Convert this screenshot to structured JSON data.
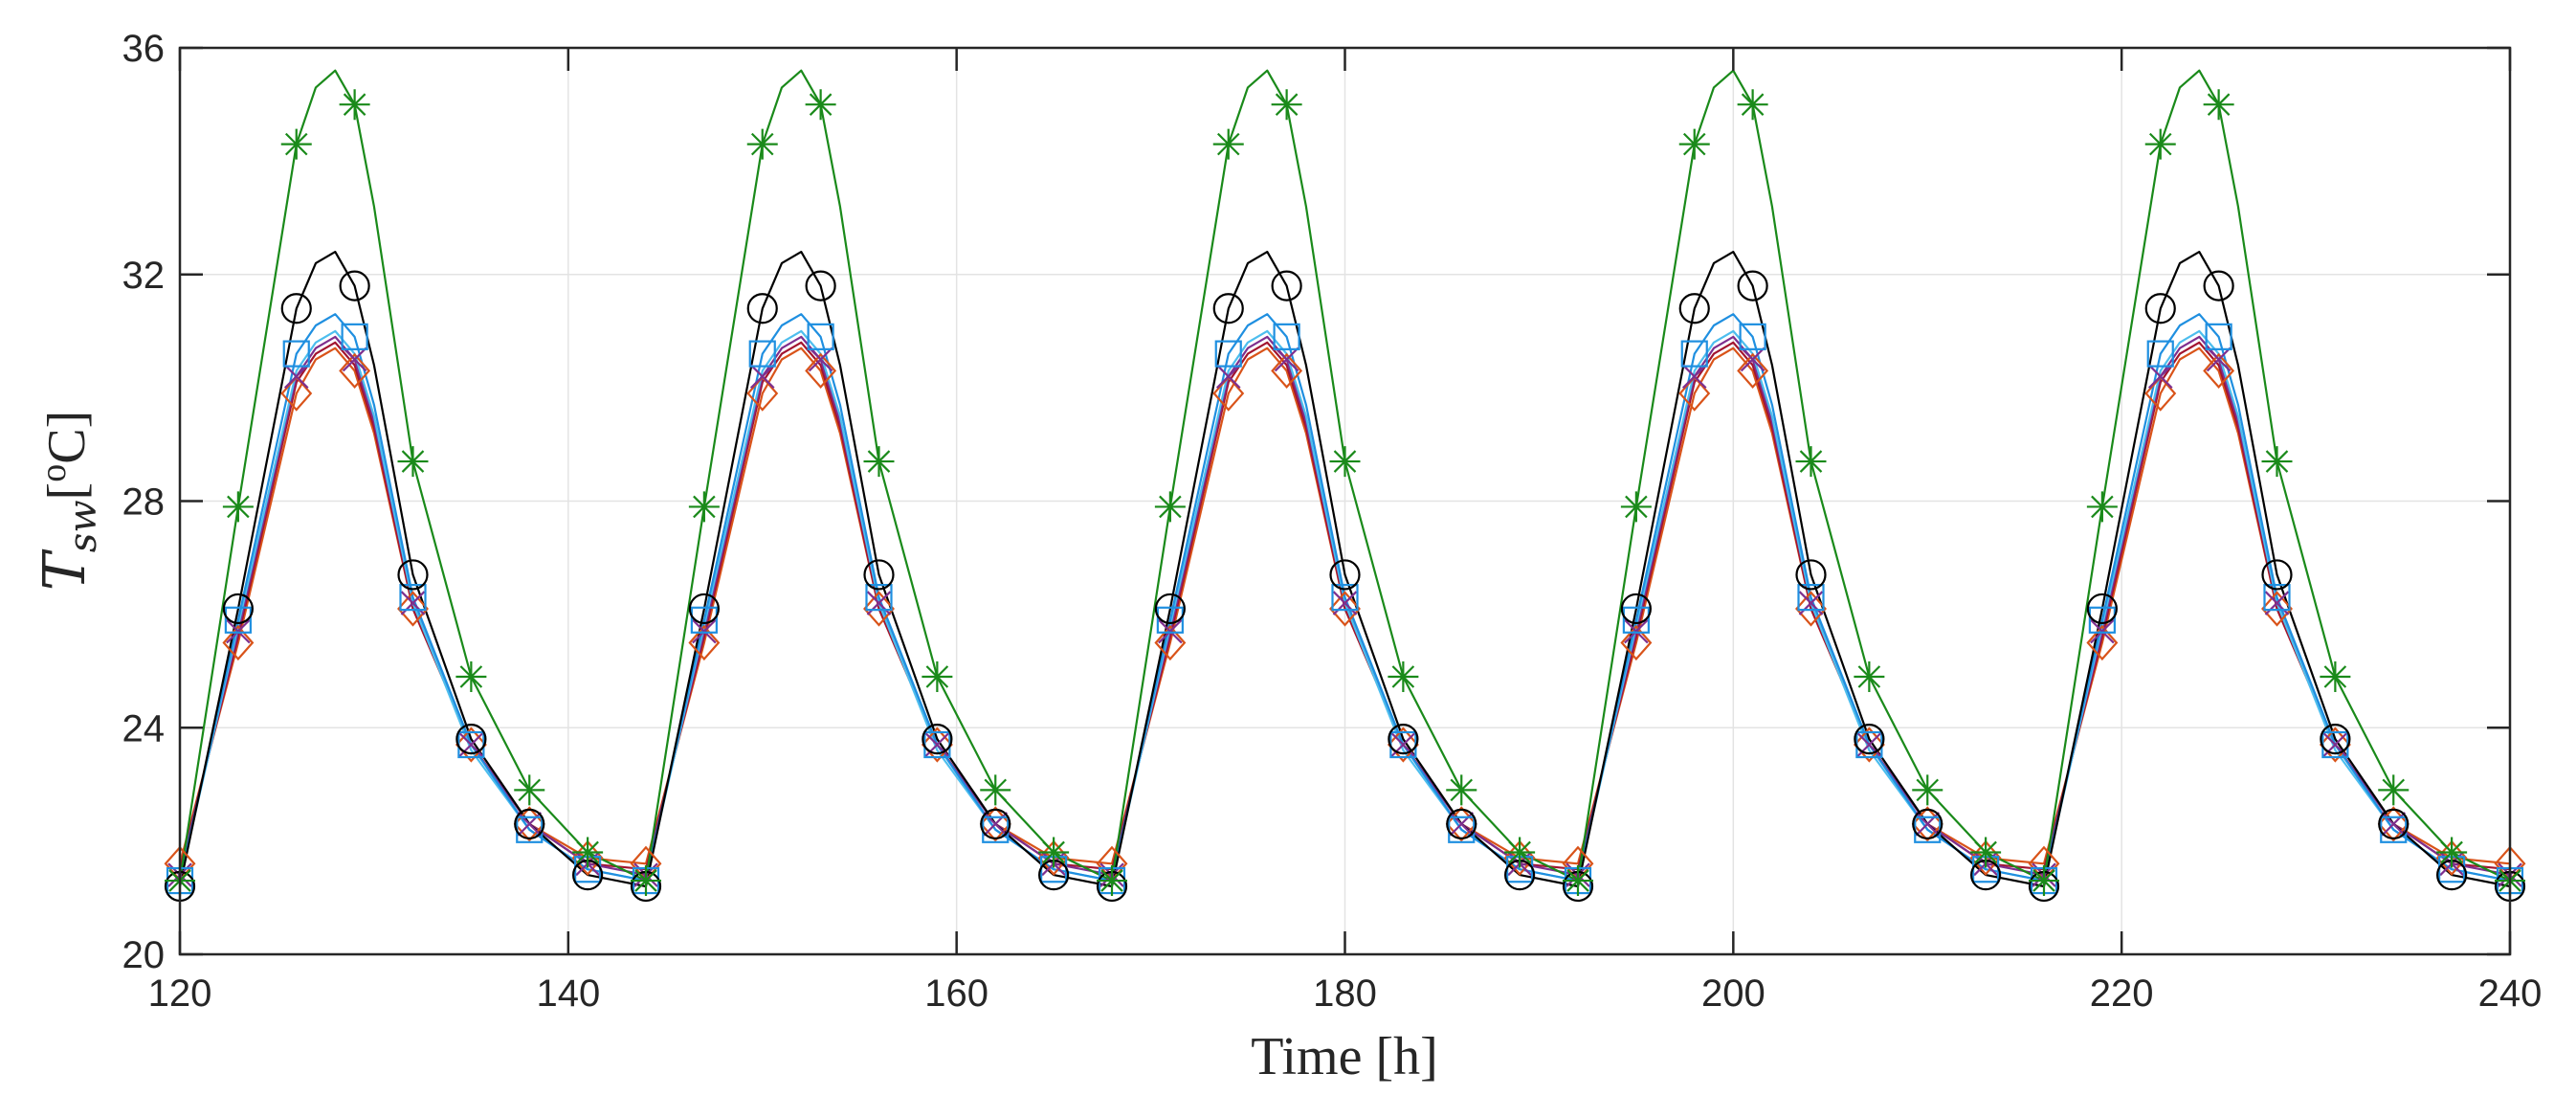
{
  "chart_data": {
    "type": "line",
    "title": "",
    "xlabel": "Time [h]",
    "ylabel": {
      "main": "T",
      "sub": "sw",
      "bracket_open": "[",
      "superscript": "o",
      "unit": "C]"
    },
    "xlim": [
      120,
      240
    ],
    "ylim": [
      20,
      36
    ],
    "xticks": [
      120,
      140,
      160,
      180,
      200,
      220,
      240
    ],
    "xtick_labels": [
      "120",
      "140",
      "160",
      "180",
      "200",
      "220",
      "240"
    ],
    "yticks": [
      20,
      24,
      28,
      32,
      36
    ],
    "ytick_labels": [
      "20",
      "24",
      "28",
      "32",
      "36"
    ],
    "grid": true,
    "period_hours": 24,
    "start_hour": 120,
    "end_hour": 240,
    "cycle_hours": [
      0,
      3,
      6,
      7,
      8,
      9,
      10,
      12,
      15,
      18,
      21,
      24
    ],
    "marker_interval_hours": 3,
    "series": [
      {
        "name": "green-asterisk",
        "color": "#1a8a1a",
        "marker": "asterisk",
        "marker_offset": 0,
        "cycle_values": [
          21.3,
          27.9,
          34.3,
          35.3,
          35.6,
          35.0,
          33.2,
          28.7,
          24.9,
          22.9,
          21.8,
          21.3
        ]
      },
      {
        "name": "black-circle",
        "color": "#000000",
        "marker": "circle",
        "marker_offset": 0,
        "cycle_values": [
          21.2,
          26.1,
          31.4,
          32.2,
          32.4,
          31.8,
          30.4,
          26.7,
          23.8,
          22.3,
          21.4,
          21.2
        ]
      },
      {
        "name": "blue-square",
        "color": "#1f8fe0",
        "marker": "square",
        "marker_offset": 0,
        "cycle_values": [
          21.3,
          25.9,
          30.6,
          31.1,
          31.3,
          30.9,
          29.7,
          26.3,
          23.7,
          22.2,
          21.5,
          21.3
        ]
      },
      {
        "name": "cyan-line",
        "color": "#4dbeee",
        "marker": "none",
        "marker_offset": 0,
        "cycle_values": [
          21.3,
          25.8,
          30.3,
          30.8,
          31.0,
          30.6,
          29.5,
          26.2,
          23.6,
          22.2,
          21.5,
          21.3
        ]
      },
      {
        "name": "purple-cross",
        "color": "#7e2f8e",
        "marker": "x",
        "marker_offset": 0,
        "cycle_values": [
          21.4,
          25.7,
          30.2,
          30.7,
          30.9,
          30.5,
          29.4,
          26.2,
          23.7,
          22.3,
          21.6,
          21.4
        ]
      },
      {
        "name": "brown-line",
        "color": "#a2142f",
        "marker": "none",
        "marker_offset": 0,
        "cycle_values": [
          21.5,
          25.6,
          30.1,
          30.6,
          30.8,
          30.4,
          29.3,
          26.1,
          23.7,
          22.3,
          21.6,
          21.5
        ]
      },
      {
        "name": "orange-diamond",
        "color": "#d95319",
        "marker": "diamond",
        "marker_offset": 0,
        "cycle_values": [
          21.6,
          25.5,
          29.9,
          30.5,
          30.7,
          30.3,
          29.2,
          26.1,
          23.7,
          22.3,
          21.7,
          21.6
        ]
      }
    ]
  }
}
